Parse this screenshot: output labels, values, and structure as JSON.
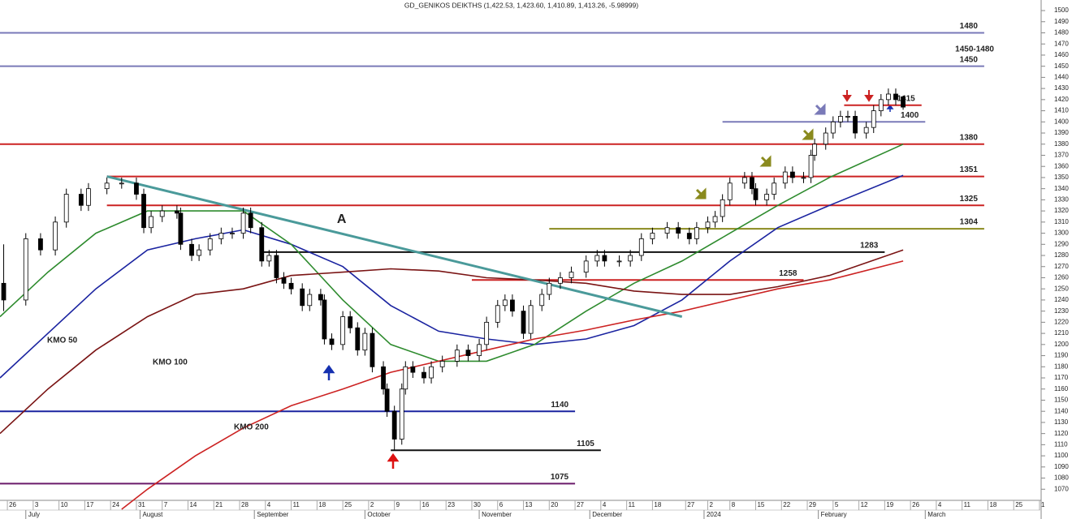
{
  "chart_data": {
    "type": "candlestick",
    "title": "GD_GENIKOS DEIKTHS (1,422.53, 1,423.60, 1,410.89, 1,413.26, -5.98999)",
    "x": [
      -1,
      5,
      9,
      13,
      16,
      20,
      22,
      27,
      31,
      35,
      37,
      39,
      42,
      46,
      47,
      50,
      52,
      55,
      58,
      61,
      64,
      66,
      69,
      71,
      73,
      75,
      77,
      80,
      82,
      85,
      86,
      88,
      91,
      93,
      95,
      97,
      99,
      102,
      103,
      105,
      107,
      108,
      110,
      113,
      115,
      118,
      122,
      125,
      128,
      130,
      133,
      135,
      137,
      140,
      142,
      145,
      147,
      150,
      153,
      157,
      160,
      162,
      166,
      169,
      172,
      175,
      179,
      182,
      185,
      187,
      190,
      192,
      194,
      196,
      200,
      202,
      203,
      206,
      208,
      211,
      213,
      216,
      218,
      219,
      222,
      224,
      226,
      228,
      230,
      233,
      235,
      237,
      239,
      241,
      243
    ],
    "open": [
      1255,
      1240,
      1295,
      1285,
      1310,
      1335,
      1325,
      1340,
      1345,
      1345,
      1335,
      1305,
      1315,
      1320,
      1318,
      1290,
      1280,
      1285,
      1295,
      1300,
      1300,
      1318,
      1305,
      1275,
      1280,
      1260,
      1255,
      1250,
      1235,
      1245,
      1240,
      1205,
      1200,
      1225,
      1215,
      1195,
      1210,
      1180,
      1160,
      1140,
      1115,
      1160,
      1180,
      1175,
      1170,
      1180,
      1185,
      1195,
      1190,
      1200,
      1220,
      1235,
      1240,
      1230,
      1210,
      1235,
      1245,
      1255,
      1260,
      1265,
      1275,
      1280,
      1275,
      1275,
      1280,
      1295,
      1300,
      1305,
      1300,
      1295,
      1305,
      1310,
      1315,
      1330,
      1345,
      1350,
      1340,
      1330,
      1335,
      1345,
      1355,
      1350,
      1350,
      1370,
      1380,
      1390,
      1400,
      1405,
      1405,
      1390,
      1395,
      1410,
      1420,
      1425,
      1422.53
    ],
    "high": [
      1290,
      1300,
      1300,
      1315,
      1340,
      1340,
      1345,
      1350,
      1350,
      1350,
      1340,
      1320,
      1325,
      1325,
      1323,
      1295,
      1290,
      1300,
      1305,
      1305,
      1323,
      1323,
      1310,
      1285,
      1285,
      1265,
      1260,
      1255,
      1250,
      1250,
      1245,
      1210,
      1230,
      1230,
      1220,
      1215,
      1215,
      1185,
      1165,
      1145,
      1165,
      1185,
      1185,
      1180,
      1185,
      1190,
      1200,
      1200,
      1205,
      1225,
      1240,
      1245,
      1245,
      1235,
      1240,
      1250,
      1260,
      1265,
      1270,
      1280,
      1285,
      1285,
      1280,
      1285,
      1300,
      1305,
      1310,
      1310,
      1305,
      1310,
      1315,
      1320,
      1335,
      1350,
      1355,
      1355,
      1345,
      1340,
      1350,
      1360,
      1360,
      1355,
      1375,
      1385,
      1395,
      1405,
      1410,
      1410,
      1410,
      1400,
      1415,
      1425,
      1430,
      1430,
      1423.6
    ],
    "low": [
      1230,
      1235,
      1280,
      1280,
      1305,
      1320,
      1320,
      1335,
      1340,
      1330,
      1300,
      1300,
      1310,
      1313,
      1285,
      1275,
      1275,
      1280,
      1290,
      1295,
      1295,
      1300,
      1270,
      1270,
      1255,
      1250,
      1245,
      1230,
      1230,
      1235,
      1200,
      1195,
      1195,
      1210,
      1190,
      1190,
      1175,
      1155,
      1135,
      1105,
      1110,
      1155,
      1170,
      1165,
      1165,
      1175,
      1180,
      1185,
      1185,
      1195,
      1215,
      1230,
      1225,
      1205,
      1205,
      1230,
      1240,
      1250,
      1255,
      1260,
      1270,
      1270,
      1270,
      1270,
      1275,
      1290,
      1295,
      1295,
      1290,
      1290,
      1300,
      1305,
      1310,
      1325,
      1340,
      1335,
      1325,
      1325,
      1330,
      1340,
      1345,
      1345,
      1345,
      1365,
      1375,
      1385,
      1395,
      1400,
      1385,
      1385,
      1390,
      1405,
      1415,
      1415,
      1410.89
    ],
    "close": [
      1240,
      1295,
      1285,
      1310,
      1335,
      1325,
      1340,
      1345,
      1345,
      1335,
      1305,
      1315,
      1320,
      1318,
      1290,
      1280,
      1285,
      1295,
      1300,
      1300,
      1318,
      1305,
      1275,
      1280,
      1260,
      1255,
      1250,
      1235,
      1245,
      1240,
      1205,
      1200,
      1225,
      1215,
      1195,
      1210,
      1180,
      1160,
      1140,
      1115,
      1160,
      1180,
      1175,
      1170,
      1180,
      1185,
      1195,
      1190,
      1200,
      1220,
      1235,
      1240,
      1230,
      1210,
      1235,
      1245,
      1255,
      1260,
      1265,
      1275,
      1280,
      1275,
      1275,
      1280,
      1295,
      1300,
      1305,
      1300,
      1295,
      1305,
      1310,
      1315,
      1330,
      1345,
      1350,
      1340,
      1330,
      1335,
      1345,
      1355,
      1350,
      1350,
      1370,
      1380,
      1390,
      1400,
      1405,
      1405,
      1390,
      1395,
      1410,
      1420,
      1425,
      1420,
      1413.26
    ],
    "xlim": [
      -2,
      280
    ],
    "ylim": [
      1060,
      1509.5
    ],
    "yticks": [
      1070,
      1080,
      1090,
      1100,
      1110,
      1120,
      1130,
      1140,
      1150,
      1160,
      1170,
      1180,
      1190,
      1200,
      1210,
      1220,
      1230,
      1240,
      1250,
      1260,
      1270,
      1280,
      1290,
      1300,
      1310,
      1320,
      1330,
      1340,
      1350,
      1360,
      1370,
      1380,
      1390,
      1400,
      1410,
      1420,
      1430,
      1440,
      1450,
      1460,
      1470,
      1480,
      1490,
      1500
    ],
    "xticks": [
      {
        "value": 0,
        "label": "26"
      },
      {
        "value": 7,
        "label": "3"
      },
      {
        "value": 14,
        "label": "10"
      },
      {
        "value": 21,
        "label": "17"
      },
      {
        "value": 28,
        "label": "24"
      },
      {
        "value": 35,
        "label": "31"
      },
      {
        "value": 42,
        "label": "7"
      },
      {
        "value": 49,
        "label": "14"
      },
      {
        "value": 56,
        "label": "21"
      },
      {
        "value": 63,
        "label": "28"
      },
      {
        "value": 70,
        "label": "4"
      },
      {
        "value": 77,
        "label": "11"
      },
      {
        "value": 84,
        "label": "18"
      },
      {
        "value": 91,
        "label": "25"
      },
      {
        "value": 98,
        "label": "2"
      },
      {
        "value": 105,
        "label": "9"
      },
      {
        "value": 112,
        "label": "16"
      },
      {
        "value": 119,
        "label": "23"
      },
      {
        "value": 126,
        "label": "30"
      },
      {
        "value": 133,
        "label": "6"
      },
      {
        "value": 140,
        "label": "13"
      },
      {
        "value": 147,
        "label": "20"
      },
      {
        "value": 154,
        "label": "27"
      },
      {
        "value": 161,
        "label": "4"
      },
      {
        "value": 168,
        "label": "11"
      },
      {
        "value": 175,
        "label": "18"
      },
      {
        "value": 184,
        "label": "27"
      },
      {
        "value": 190,
        "label": "2"
      },
      {
        "value": 196,
        "label": "8"
      },
      {
        "value": 203,
        "label": "15"
      },
      {
        "value": 210,
        "label": "22"
      },
      {
        "value": 217,
        "label": "29"
      },
      {
        "value": 224,
        "label": "5"
      },
      {
        "value": 231,
        "label": "12"
      },
      {
        "value": 238,
        "label": "19"
      },
      {
        "value": 245,
        "label": "26"
      },
      {
        "value": 252,
        "label": "4"
      },
      {
        "value": 259,
        "label": "11"
      },
      {
        "value": 266,
        "label": "18"
      },
      {
        "value": 273,
        "label": "25"
      },
      {
        "value": 280,
        "label": "1"
      }
    ],
    "months": [
      {
        "value": 5,
        "label": "July"
      },
      {
        "value": 36,
        "label": "August"
      },
      {
        "value": 67,
        "label": "September"
      },
      {
        "value": 97,
        "label": "October"
      },
      {
        "value": 128,
        "label": "November"
      },
      {
        "value": 158,
        "label": "December"
      },
      {
        "value": 189,
        "label": "2024"
      },
      {
        "value": 220,
        "label": "February"
      },
      {
        "value": 249,
        "label": "March"
      }
    ],
    "series": [
      {
        "name": "KMO 50",
        "color": "#1a23a0",
        "x": [
          -2,
          11,
          24,
          38,
          51,
          64,
          77,
          91,
          104,
          117,
          130,
          143,
          157,
          170,
          183,
          196,
          209,
          223,
          243
        ],
        "values": [
          1170,
          1210,
          1250,
          1285,
          1295,
          1303,
          1290,
          1270,
          1235,
          1212,
          1205,
          1200,
          1205,
          1217,
          1240,
          1275,
          1305,
          1325,
          1352
        ]
      },
      {
        "color": "#2e8b2e",
        "x": [
          -2,
          11,
          24,
          38,
          51,
          64,
          77,
          91,
          104,
          117,
          130,
          143,
          157,
          170,
          183,
          196,
          209,
          223,
          243
        ],
        "values": [
          1225,
          1265,
          1300,
          1320,
          1320,
          1320,
          1290,
          1240,
          1200,
          1185,
          1185,
          1200,
          1230,
          1255,
          1275,
          1300,
          1325,
          1350,
          1380
        ]
      },
      {
        "name": "KMO 100",
        "color": "#7a1414",
        "x": [
          -2,
          11,
          24,
          38,
          51,
          64,
          77,
          91,
          104,
          117,
          130,
          143,
          157,
          170,
          183,
          196,
          209,
          223,
          243
        ],
        "values": [
          1120,
          1160,
          1195,
          1225,
          1245,
          1250,
          1262,
          1265,
          1268,
          1266,
          1260,
          1258,
          1255,
          1248,
          1245,
          1245,
          1252,
          1262,
          1285
        ]
      },
      {
        "name": "KMO 200",
        "color": "#cc2222",
        "x": [
          31,
          38,
          51,
          64,
          77,
          91,
          104,
          117,
          130,
          143,
          157,
          170,
          183,
          196,
          209,
          223,
          243
        ],
        "values": [
          1052,
          1070,
          1100,
          1125,
          1145,
          1160,
          1175,
          1185,
          1195,
          1205,
          1213,
          1222,
          1230,
          1240,
          1250,
          1258,
          1275
        ]
      }
    ],
    "levels": [
      {
        "value": 1480,
        "from": -2,
        "to": 265,
        "color": "#7a7ab8"
      },
      {
        "value": 1450,
        "from": -2,
        "to": 265,
        "color": "#7a7ab8"
      },
      {
        "value": 1415,
        "from": 227,
        "to": 248,
        "color": "#cc2222"
      },
      {
        "value": 1400,
        "from": 194,
        "to": 249,
        "color": "#7a7ab8"
      },
      {
        "value": 1380,
        "from": -2,
        "to": 265,
        "color": "#cc2222"
      },
      {
        "value": 1351,
        "from": 27,
        "to": 265,
        "color": "#cc2222"
      },
      {
        "value": 1325,
        "from": 27,
        "to": 265,
        "color": "#cc2222"
      },
      {
        "value": 1304,
        "from": 147,
        "to": 265,
        "color": "#8a8a1e"
      },
      {
        "value": 1283,
        "from": 68.5,
        "to": 238,
        "color": "#111111"
      },
      {
        "value": 1258,
        "from": 126,
        "to": 216,
        "color": "#cc2222"
      },
      {
        "value": 1140,
        "from": -2,
        "to": 154,
        "color": "#1a23a0"
      },
      {
        "value": 1105,
        "from": 104,
        "to": 161,
        "color": "#111111"
      },
      {
        "value": 1075,
        "from": -2,
        "to": 154,
        "color": "#6a1a6a"
      }
    ],
    "band_label": "1450-1480",
    "trendline": {
      "label": "A",
      "color": "#4a9a9a",
      "x": [
        27,
        183
      ],
      "values": [
        1351,
        1225
      ]
    }
  }
}
